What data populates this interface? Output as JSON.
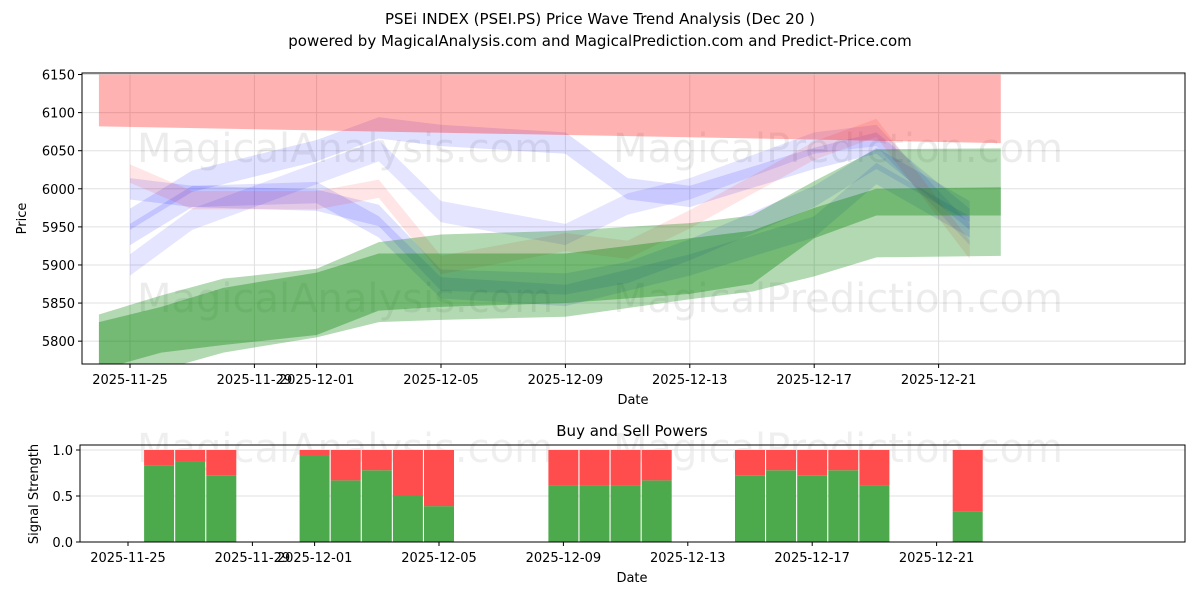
{
  "chart_data": [
    {
      "type": "area",
      "title": "PSEi INDEX (PSEI.PS) Price Wave Trend Analysis (Dec 20 )",
      "subtitle": "powered by MagicalAnalysis.com and MagicalPrediction.com and Predict-Price.com",
      "xlabel": "Date",
      "ylabel": "Price",
      "ylim": [
        5770,
        6152
      ],
      "xlim": [
        "2025-11-23",
        "2025-12-23"
      ],
      "x_ticks": [
        "2025-11-25",
        "2025-11-29",
        "2025-12-01",
        "2025-12-05",
        "2025-12-09",
        "2025-12-13",
        "2025-12-17",
        "2025-12-21"
      ],
      "y_ticks": [
        5800,
        5850,
        5900,
        5950,
        6000,
        6050,
        6100,
        6150
      ],
      "watermarks": [
        "MagicalAnalysis.com",
        "MagicalPrediction.com"
      ],
      "bands": [
        {
          "name": "red-band",
          "color": "#ff0000",
          "opacity": 0.3,
          "dates": [
            "2025-11-24",
            "2025-12-23"
          ],
          "lower": [
            6082,
            6060
          ],
          "upper": [
            6150,
            6150
          ]
        },
        {
          "name": "green-band-light",
          "color": "#008000",
          "opacity": 0.3,
          "dates": [
            "2025-11-24",
            "2025-11-26",
            "2025-11-28",
            "2025-12-01",
            "2025-12-03",
            "2025-12-05",
            "2025-12-09",
            "2025-12-13",
            "2025-12-15",
            "2025-12-17",
            "2025-12-19",
            "2025-12-23"
          ],
          "lower": [
            5770,
            5762,
            5785,
            5805,
            5825,
            5828,
            5832,
            5855,
            5865,
            5885,
            5910,
            5912
          ],
          "upper": [
            5835,
            5860,
            5882,
            5895,
            5930,
            5940,
            5945,
            5955,
            5965,
            6010,
            6052,
            6053
          ]
        },
        {
          "name": "green-band-dark",
          "color": "#008000",
          "opacity": 0.35,
          "dates": [
            "2025-11-24",
            "2025-11-26",
            "2025-11-28",
            "2025-12-01",
            "2025-12-03",
            "2025-12-05",
            "2025-12-09",
            "2025-12-13",
            "2025-12-15",
            "2025-12-17",
            "2025-12-19",
            "2025-12-23"
          ],
          "lower": [
            5762,
            5785,
            5795,
            5808,
            5840,
            5845,
            5850,
            5862,
            5875,
            5935,
            5965,
            5965
          ],
          "upper": [
            5825,
            5845,
            5870,
            5890,
            5915,
            5915,
            5915,
            5935,
            5945,
            5975,
            6000,
            6002
          ]
        }
      ],
      "waves": [
        {
          "color": "#0000ff",
          "opacity": 0.12,
          "half_width": 14,
          "dates": [
            "2025-11-25",
            "2025-11-27",
            "2025-12-01",
            "2025-12-03",
            "2025-12-05",
            "2025-12-09",
            "2025-12-11",
            "2025-12-13",
            "2025-12-17",
            "2025-12-19",
            "2025-12-22"
          ],
          "values": [
            5960,
            6010,
            6050,
            6080,
            6070,
            6060,
            6000,
            5990,
            6040,
            6060,
            5960
          ]
        },
        {
          "color": "#0000ff",
          "opacity": 0.12,
          "half_width": 14,
          "dates": [
            "2025-11-25",
            "2025-11-27",
            "2025-12-01",
            "2025-12-03",
            "2025-12-05",
            "2025-12-09",
            "2025-12-11",
            "2025-12-13",
            "2025-12-17",
            "2025-12-19",
            "2025-12-22"
          ],
          "values": [
            6000,
            5990,
            5985,
            5965,
            5880,
            5875,
            5890,
            5920,
            5990,
            6040,
            5970
          ]
        },
        {
          "color": "#0000ff",
          "opacity": 0.12,
          "half_width": 14,
          "dates": [
            "2025-11-25",
            "2025-11-27",
            "2025-12-01",
            "2025-12-03",
            "2025-12-05",
            "2025-12-09",
            "2025-12-11",
            "2025-12-13",
            "2025-12-17",
            "2025-12-19",
            "2025-12-22"
          ],
          "values": [
            5940,
            5990,
            5995,
            5950,
            5870,
            5860,
            5880,
            5900,
            5950,
            6020,
            5950
          ]
        },
        {
          "color": "#0000ff",
          "opacity": 0.1,
          "half_width": 14,
          "dates": [
            "2025-11-25",
            "2025-11-27",
            "2025-12-01",
            "2025-12-03",
            "2025-12-05",
            "2025-12-09",
            "2025-12-11",
            "2025-12-13",
            "2025-12-17",
            "2025-12-19",
            "2025-12-22"
          ],
          "values": [
            5900,
            5960,
            6020,
            6050,
            5970,
            5940,
            5980,
            6000,
            6060,
            6070,
            5940
          ]
        },
        {
          "color": "#ff0000",
          "opacity": 0.1,
          "half_width": 12,
          "dates": [
            "2025-11-25",
            "2025-11-27",
            "2025-12-01",
            "2025-12-03",
            "2025-12-05",
            "2025-12-09",
            "2025-12-11",
            "2025-12-13",
            "2025-12-17",
            "2025-12-19",
            "2025-12-22"
          ],
          "values": [
            6020,
            5985,
            5985,
            6000,
            5900,
            5930,
            5920,
            5960,
            6050,
            6080,
            5920
          ]
        }
      ]
    },
    {
      "type": "bar",
      "title": "Buy and Sell Powers",
      "xlabel": "Date",
      "ylabel": "Signal Strength",
      "ylim": [
        0,
        1.05
      ],
      "xlim": [
        "2025-11-23",
        "2025-12-23"
      ],
      "x_ticks": [
        "2025-11-25",
        "2025-11-29",
        "2025-12-01",
        "2025-12-05",
        "2025-12-09",
        "2025-12-13",
        "2025-12-17",
        "2025-12-21"
      ],
      "y_ticks": [
        "0.0",
        "0.5",
        "1.0"
      ],
      "buy_color": "#4caa4c",
      "sell_color": "#ff4c4c",
      "dates": [
        "2025-11-26",
        "2025-11-27",
        "2025-11-28",
        "2025-12-01",
        "2025-12-02",
        "2025-12-03",
        "2025-12-04",
        "2025-12-05",
        "2025-12-09",
        "2025-12-10",
        "2025-12-11",
        "2025-12-12",
        "2025-12-15",
        "2025-12-16",
        "2025-12-17",
        "2025-12-18",
        "2025-12-19",
        "2025-12-22"
      ],
      "buy": [
        0.83,
        0.88,
        0.72,
        0.94,
        0.67,
        0.78,
        0.5,
        0.39,
        0.61,
        0.61,
        0.61,
        0.67,
        0.72,
        0.78,
        0.72,
        0.78,
        0.61,
        0.33
      ],
      "sell": [
        0.17,
        0.12,
        0.28,
        0.06,
        0.33,
        0.22,
        0.5,
        0.61,
        0.39,
        0.39,
        0.39,
        0.33,
        0.28,
        0.22,
        0.28,
        0.22,
        0.39,
        0.67
      ]
    }
  ]
}
